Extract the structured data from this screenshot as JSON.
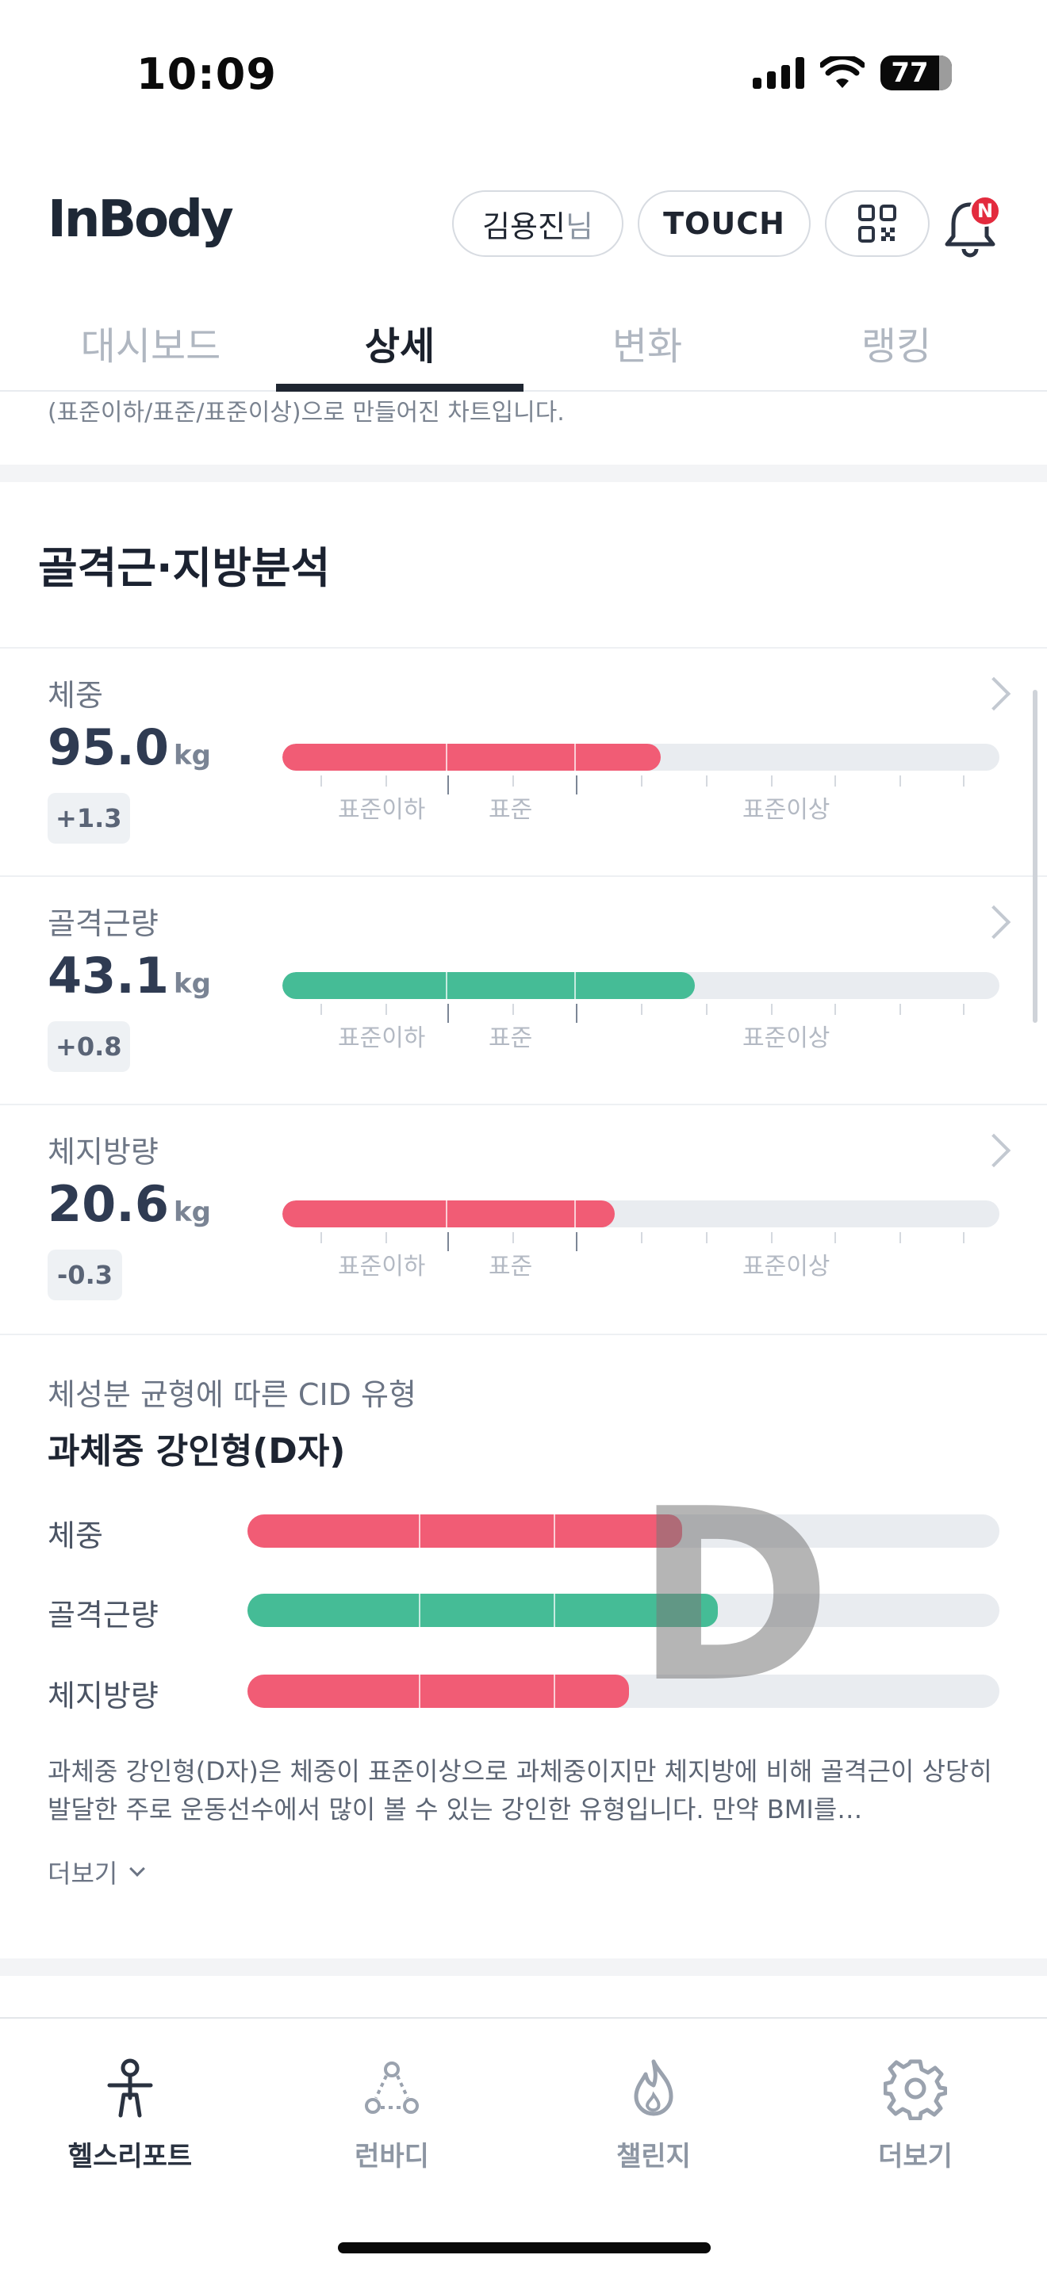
{
  "status_bar": {
    "time": "10:09",
    "battery": "77"
  },
  "header": {
    "logo": "InBody",
    "user_name": "김용진",
    "user_honorific": "님",
    "touch_label": "TOUCH",
    "notification_badge": "N"
  },
  "tabs": [
    {
      "label": "대시보드",
      "active": false
    },
    {
      "label": "상세",
      "active": true
    },
    {
      "label": "변화",
      "active": false
    },
    {
      "label": "랭킹",
      "active": false
    }
  ],
  "cut_note": "(표준이하/표준/표준이상)으로 만들어진 차트입니다.",
  "section_title": "골격근·지방분석",
  "scale_labels": {
    "below": "표준이하",
    "normal": "표준",
    "above": "표준이상"
  },
  "metrics": [
    {
      "label": "체중",
      "value": "95.0",
      "unit": "kg",
      "change": "+1.3",
      "fill_fraction": 0.528,
      "color": "#f15c75"
    },
    {
      "label": "골격근량",
      "value": "43.1",
      "unit": "kg",
      "change": "+0.8",
      "fill_fraction": 0.575,
      "color": "#45bc96"
    },
    {
      "label": "체지방량",
      "value": "20.6",
      "unit": "kg",
      "change": "-0.3",
      "fill_fraction": 0.464,
      "color": "#f15c75"
    }
  ],
  "cid": {
    "subtitle": "체성분 균형에 따른 CID 유형",
    "type_label": "과체중 강인형(D자)",
    "letter": "D",
    "rows": [
      {
        "label": "체중",
        "fill_fraction": 0.578,
        "color": "#f15c75"
      },
      {
        "label": "골격근량",
        "fill_fraction": 0.626,
        "color": "#45bc96"
      },
      {
        "label": "체지방량",
        "fill_fraction": 0.507,
        "color": "#f15c75"
      }
    ],
    "description": "과체중 강인형(D자)은 체중이 표준이상으로 과체중이지만 체지방에 비해 골격근이 상당히 발달한 주로 운동선수에서 많이 볼 수 있는 강인한 유형입니다. 만약 BMI를…",
    "more_label": "더보기"
  },
  "bottom_nav": [
    {
      "label": "헬스리포트",
      "icon": "person-report-icon",
      "active": true
    },
    {
      "label": "런바디",
      "icon": "run-body-icon",
      "active": false
    },
    {
      "label": "챌린지",
      "icon": "flame-icon",
      "active": false
    },
    {
      "label": "더보기",
      "icon": "gear-icon",
      "active": false
    }
  ]
}
